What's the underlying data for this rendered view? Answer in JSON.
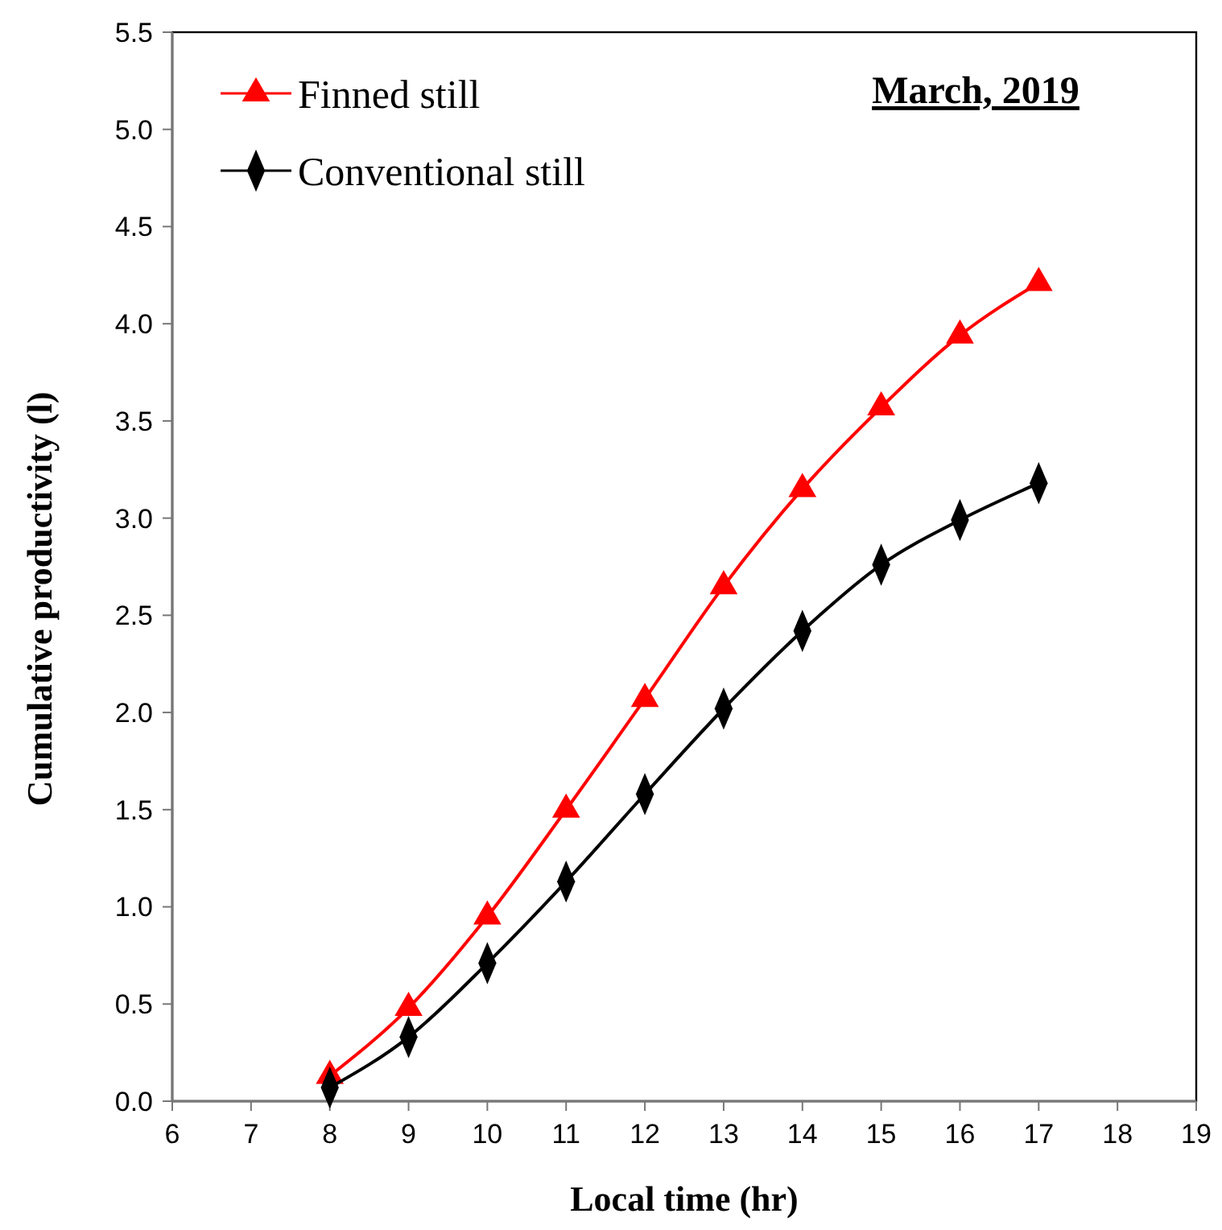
{
  "chart_data": {
    "type": "line",
    "title": "March, 2019",
    "xlabel": "Local time (hr)",
    "ylabel": "Cumulative  productivity  (l)",
    "x": [
      8,
      9,
      10,
      11,
      12,
      13,
      14,
      15,
      16,
      17
    ],
    "series": [
      {
        "name": "Finned still",
        "color": "#ff0000",
        "marker": "triangle",
        "values": [
          0.13,
          0.48,
          0.95,
          1.5,
          2.07,
          2.65,
          3.15,
          3.57,
          3.94,
          4.21
        ]
      },
      {
        "name": "Conventional still",
        "color": "#000000",
        "marker": "diamond",
        "values": [
          0.07,
          0.33,
          0.71,
          1.13,
          1.58,
          2.02,
          2.42,
          2.76,
          2.99,
          3.18
        ]
      }
    ],
    "xlim": [
      6,
      19
    ],
    "xticks": [
      6,
      7,
      8,
      9,
      10,
      11,
      12,
      13,
      14,
      15,
      16,
      17,
      18,
      19
    ],
    "ylim": [
      0,
      5.5
    ],
    "yticks": [
      {
        "value": 0,
        "label": "0.0"
      },
      0.5,
      {
        "value": 1,
        "label": "1.0"
      },
      1.5,
      {
        "value": 2,
        "label": "2.0"
      },
      2.5,
      {
        "value": 3,
        "label": "3.0"
      },
      3.5,
      {
        "value": 4,
        "label": "4.0"
      },
      4.5,
      {
        "value": 5,
        "label": "5.0"
      },
      5.5
    ],
    "grid": false,
    "legend": "top left",
    "line_style": "solid"
  }
}
